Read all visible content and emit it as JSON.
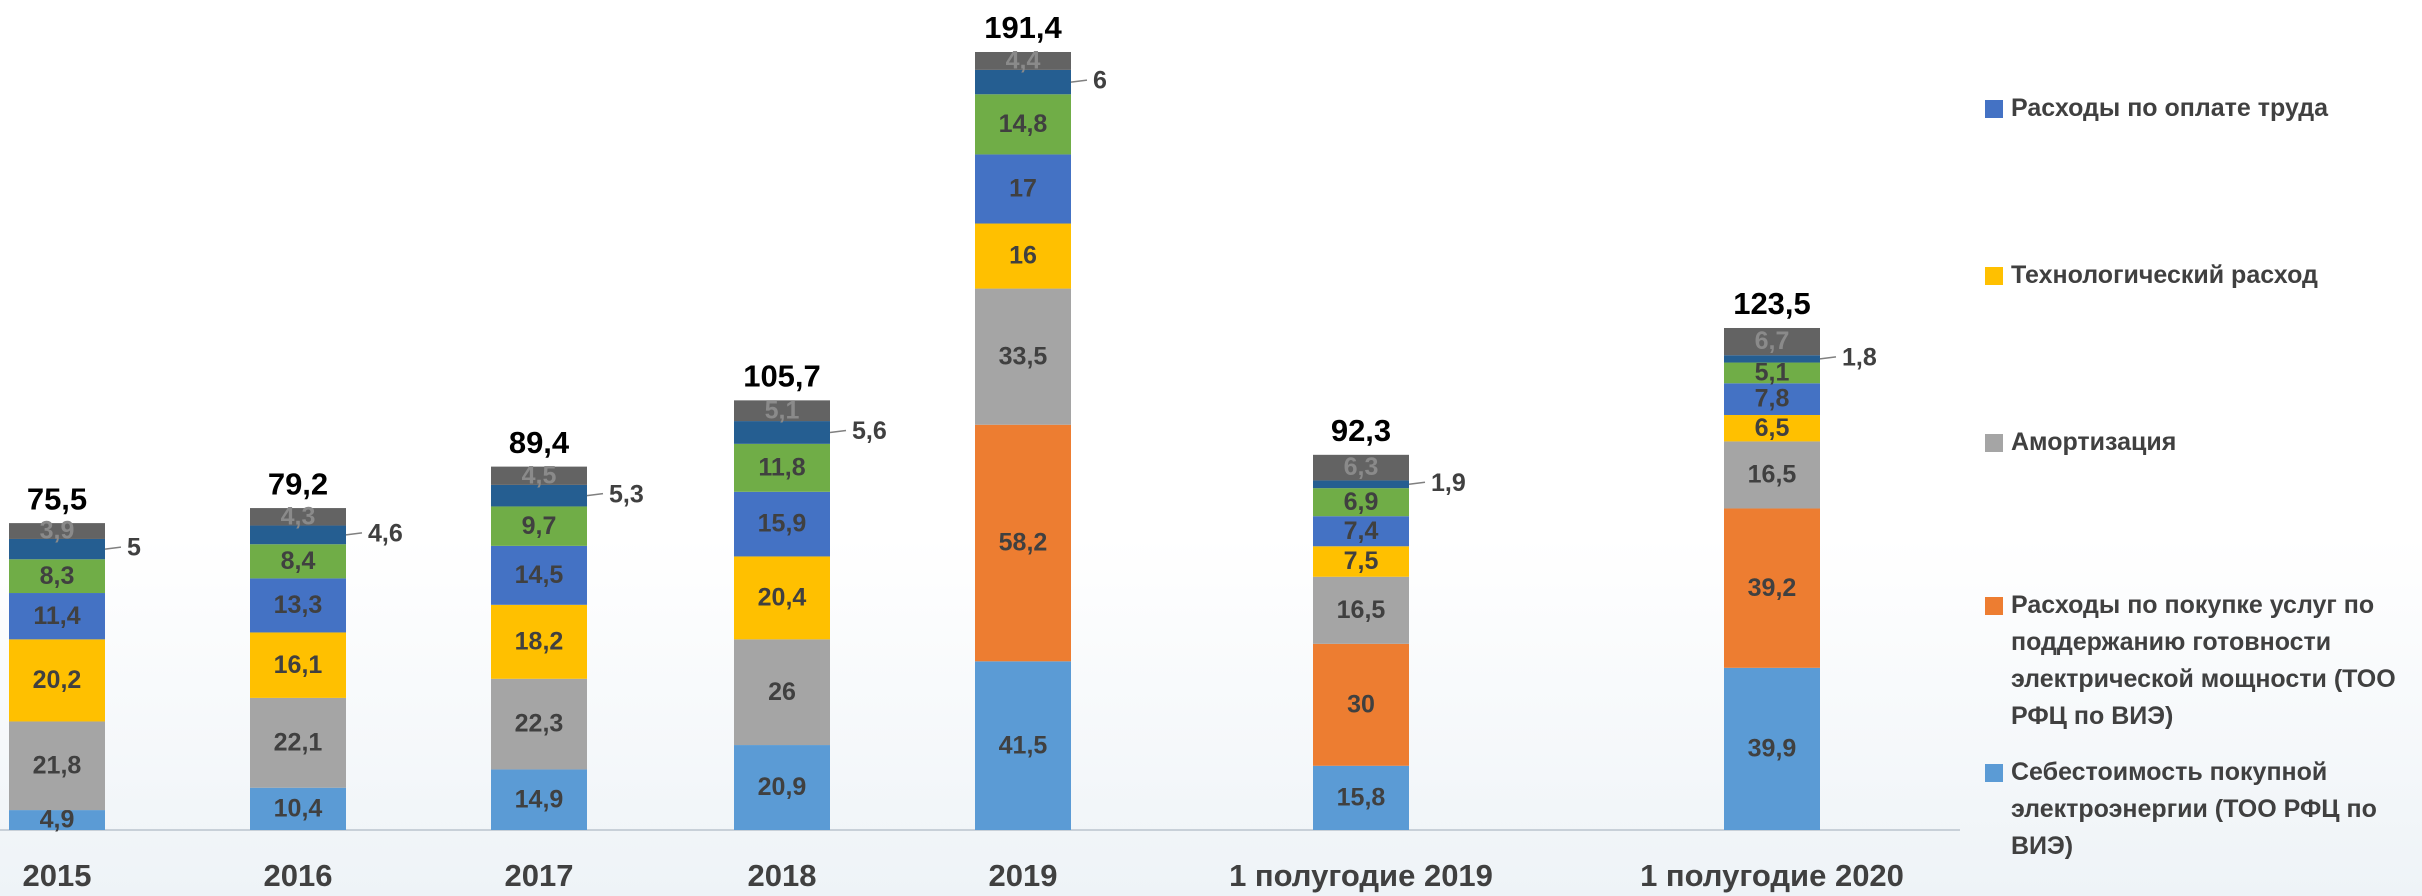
{
  "chart_data": {
    "type": "bar",
    "stacked": true,
    "categories": [
      "2015",
      "2016",
      "2017",
      "2018",
      "2019",
      "1 полугодие 2019",
      "1 полугодие 2020"
    ],
    "totals": [
      75.5,
      79.2,
      89.4,
      105.7,
      191.4,
      92.3,
      123.5
    ],
    "total_labels": [
      "75,5",
      "79,2",
      "89,4",
      "105,7",
      "191,4",
      "92,3",
      "123,5"
    ],
    "series": [
      {
        "name": "Себестоимость покупной электроэнергии (ТОО РФЦ по ВИЭ)",
        "color": "#5b9bd5",
        "values": [
          4.9,
          10.4,
          14.9,
          20.9,
          41.5,
          15.8,
          39.9
        ],
        "value_labels": [
          "4,9",
          "10,4",
          "14,9",
          "20,9",
          "41,5",
          "15,8",
          "39,9"
        ]
      },
      {
        "name": "Расходы по покупке услуг по поддержанию готовности электрической мощности (ТОО РФЦ по ВИЭ)",
        "color": "#ed7d31",
        "values": [
          null,
          null,
          null,
          null,
          58.2,
          30,
          39.2
        ],
        "value_labels": [
          null,
          null,
          null,
          null,
          "58,2",
          "30",
          "39,2"
        ]
      },
      {
        "name": "Амортизация",
        "color": "#a5a5a5",
        "values": [
          21.8,
          22.1,
          22.3,
          26,
          33.5,
          16.5,
          16.5
        ],
        "value_labels": [
          "21,8",
          "22,1",
          "22,3",
          "26",
          "33,5",
          "16,5",
          "16,5"
        ]
      },
      {
        "name": "Технологический расход",
        "color": "#ffc000",
        "values": [
          20.2,
          16.1,
          18.2,
          20.4,
          16,
          7.5,
          6.5
        ],
        "value_labels": [
          "20,2",
          "16,1",
          "18,2",
          "20,4",
          "16",
          "7,5",
          "6,5"
        ]
      },
      {
        "name": "Расходы по оплате труда",
        "color": "#4472c4",
        "values": [
          11.4,
          13.3,
          14.5,
          15.9,
          17,
          7.4,
          7.8
        ],
        "value_labels": [
          "11,4",
          "13,3",
          "14,5",
          "15,9",
          "17",
          "7,4",
          "7,8"
        ]
      },
      {
        "color": "#70ad47",
        "values": [
          8.3,
          8.4,
          9.7,
          11.8,
          14.8,
          6.9,
          5.1
        ],
        "value_labels": [
          "8,3",
          "8,4",
          "9,7",
          "11,8",
          "14,8",
          "6,9",
          "5,1"
        ]
      },
      {
        "color": "#255e91",
        "label_outside": true,
        "values": [
          5,
          4.6,
          5.3,
          5.6,
          6,
          1.9,
          1.8
        ],
        "value_labels": [
          "5",
          "4,6",
          "5,3",
          "5,6",
          "6",
          "1,9",
          "1,8"
        ]
      },
      {
        "color": "#636363",
        "values": [
          3.9,
          4.3,
          4.5,
          5.1,
          4.4,
          6.3,
          6.7
        ],
        "value_labels": [
          "3,9",
          "4,3",
          "4,5",
          "5,1",
          "4,4",
          "6,3",
          "6,7"
        ]
      }
    ]
  }
}
